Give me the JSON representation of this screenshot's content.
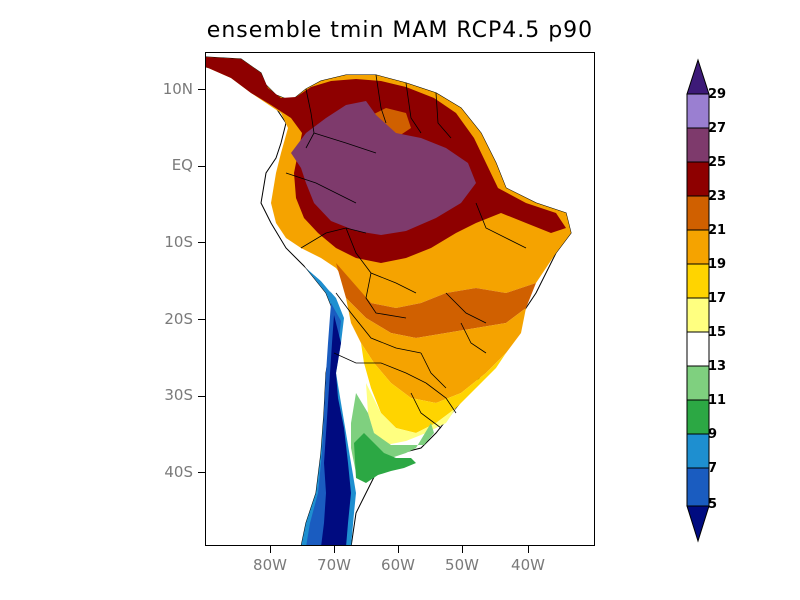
{
  "title": "ensemble tmin MAM RCP4.5 p90",
  "axes": {
    "y_labels": [
      "10N",
      "EQ",
      "10S",
      "20S",
      "30S",
      "40S"
    ],
    "x_labels": [
      "80W",
      "70W",
      "60W",
      "50W",
      "40W"
    ]
  },
  "colorbar": {
    "levels": [
      "29",
      "27",
      "25",
      "23",
      "21",
      "19",
      "17",
      "15",
      "13",
      "11",
      "9",
      "7",
      "5"
    ],
    "colors": {
      "above_29": "#3d1a78",
      "27_29": "#9a7fd1",
      "25_27": "#7e3a6c",
      "23_25": "#8e0000",
      "21_23": "#d06000",
      "19_21": "#f5a300",
      "17_19": "#ffd400",
      "15_17": "#ffff80",
      "13_15": "#ffffff",
      "11_13": "#7fd07f",
      "9_11": "#2ca844",
      "7_9": "#1e8fd0",
      "5_7": "#1a5cc0",
      "below_5": "#000b80"
    }
  }
}
